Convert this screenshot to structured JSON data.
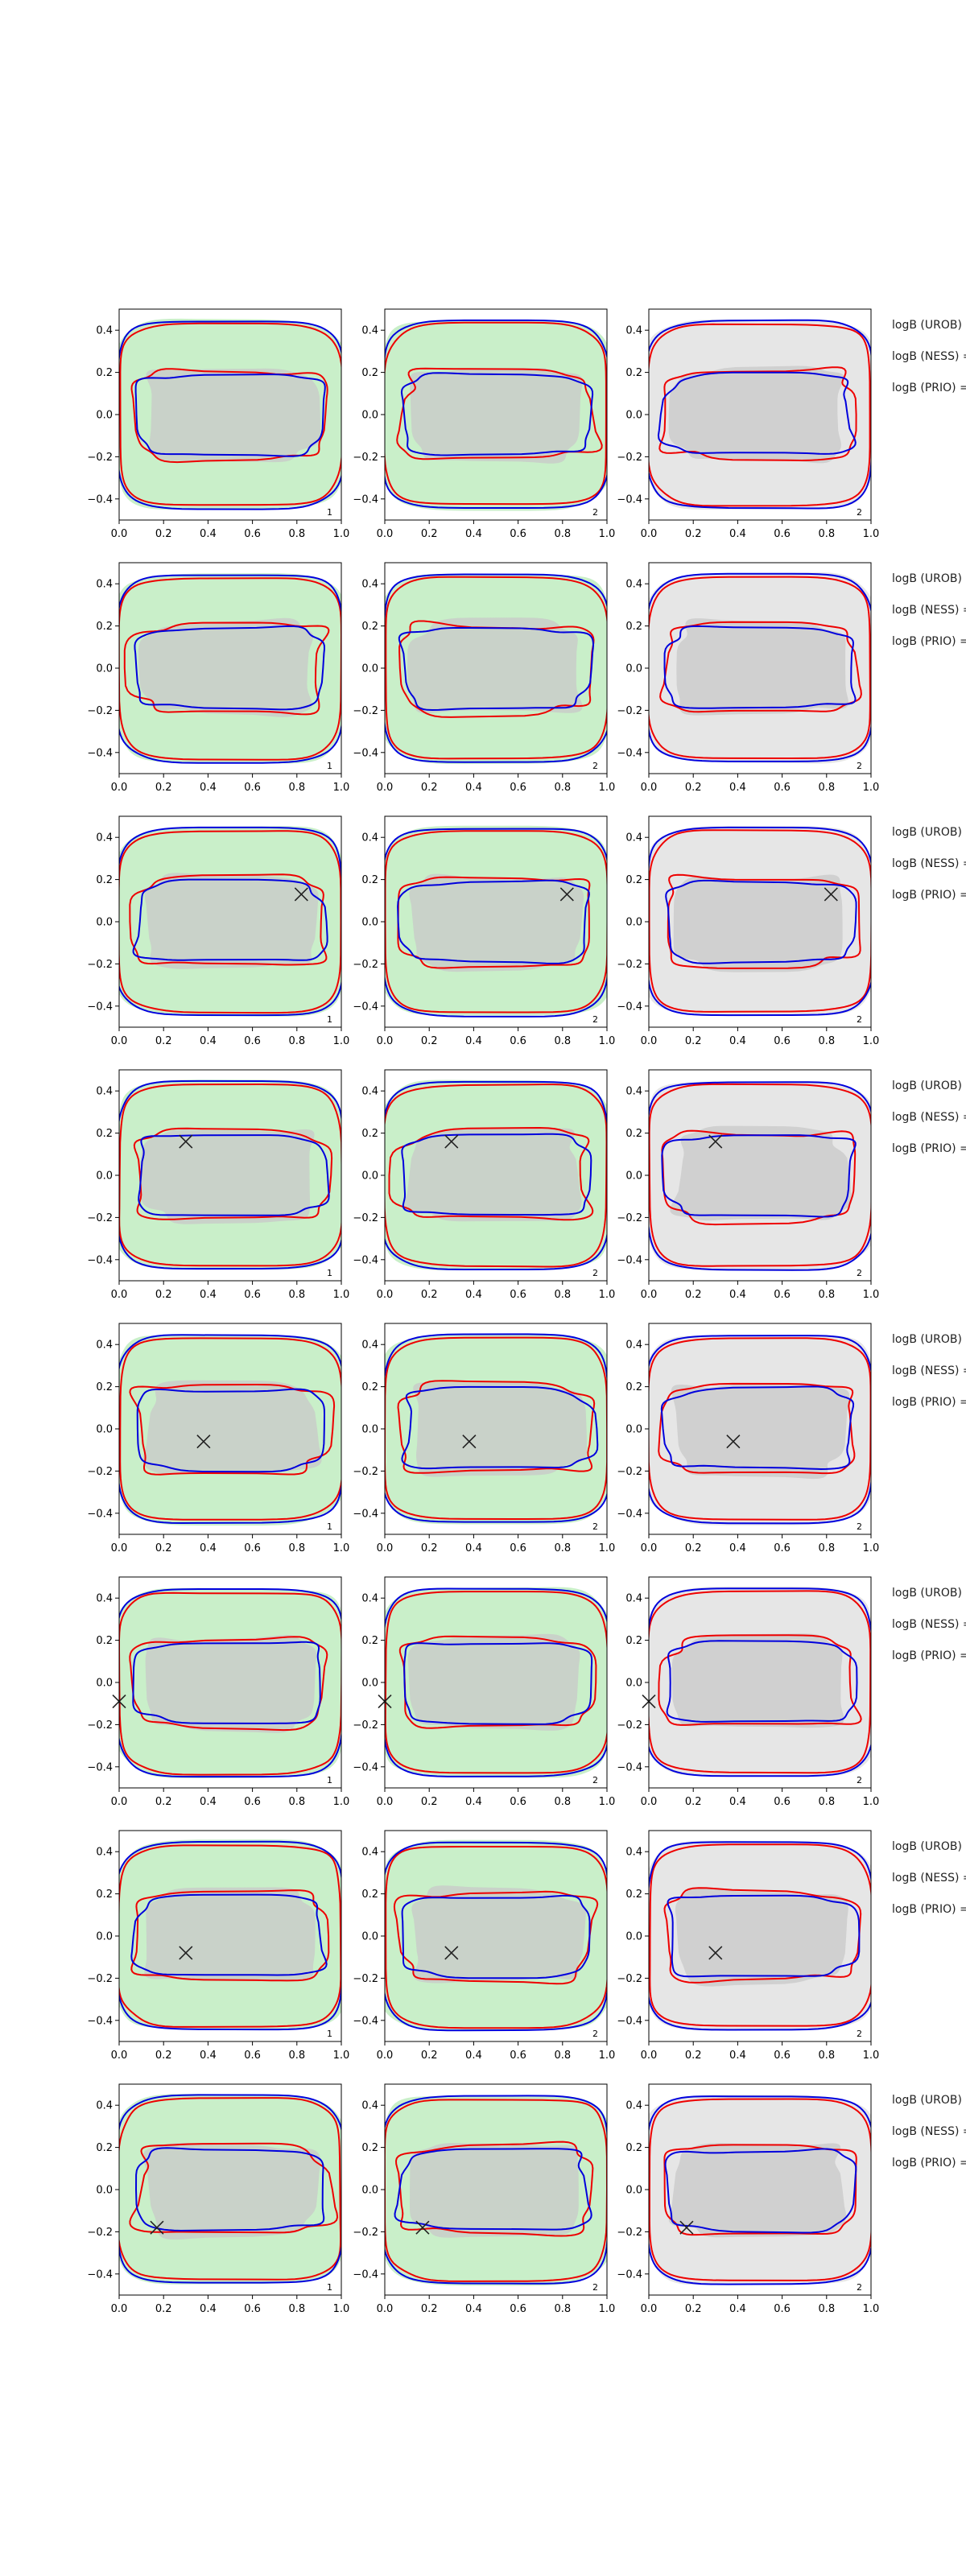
{
  "chart_data": {
    "type": "contour",
    "grid_shape": [
      8,
      3
    ],
    "xlim": [
      0.0,
      1.0
    ],
    "ylim": [
      -0.5,
      0.5
    ],
    "x_ticks": [
      "0.0",
      "0.2",
      "0.4",
      "0.6",
      "0.8",
      "1.0"
    ],
    "y_ticks": [
      "0.4",
      "0.2",
      "0.0",
      "−0.2",
      "−0.4"
    ],
    "colors": {
      "panel_bg_col1": "#c9efc9",
      "panel_bg_col2": "#c9efc9",
      "panel_bg_col3": "#e6e6e6",
      "inner_fill": "#c8c8c8",
      "red": "#ee0000",
      "blue": "#0000dd",
      "marker": "#222222"
    },
    "column_numbers": [
      "1",
      "2",
      "2"
    ],
    "row_labels": [
      "logB (UROB) =",
      "logB (NESS) =",
      "logB (PRIO) ="
    ],
    "rows": [
      {
        "marker": null
      },
      {
        "marker": null
      },
      {
        "marker": [
          0.82,
          0.13
        ]
      },
      {
        "marker": [
          0.3,
          0.16
        ]
      },
      {
        "marker": [
          0.38,
          -0.06
        ]
      },
      {
        "marker": [
          0.0,
          -0.09
        ]
      },
      {
        "marker": [
          0.3,
          -0.08
        ]
      },
      {
        "marker": [
          0.17,
          -0.18
        ]
      }
    ]
  }
}
